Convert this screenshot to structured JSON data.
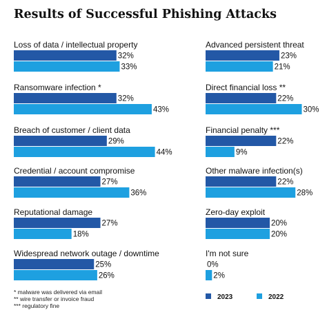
{
  "chart_data": {
    "type": "bar",
    "title": "Results of Successful Phishing Attacks",
    "orientation": "horizontal",
    "unit": "%",
    "xlim": [
      0,
      100
    ],
    "legend_placement": "bottom-right",
    "series": [
      {
        "name": "2023",
        "color": "#2358a6"
      },
      {
        "name": "2022",
        "color": "#1ea0e0"
      }
    ],
    "categories": [
      {
        "label": "Loss of data / intellectual property",
        "values": [
          32,
          33
        ]
      },
      {
        "label": "Ransomware infection *",
        "values": [
          32,
          43
        ]
      },
      {
        "label": "Breach of customer / client data",
        "values": [
          29,
          44
        ]
      },
      {
        "label": "Credential / account compromise",
        "values": [
          27,
          36
        ]
      },
      {
        "label": "Reputational damage",
        "values": [
          27,
          18
        ]
      },
      {
        "label": "Widespread network outage / downtime",
        "values": [
          25,
          26
        ]
      },
      {
        "label": "Advanced persistent threat",
        "values": [
          23,
          21
        ]
      },
      {
        "label": "Direct financial loss **",
        "values": [
          22,
          30
        ]
      },
      {
        "label": "Financial penalty ***",
        "values": [
          22,
          9
        ]
      },
      {
        "label": "Other malware infection(s)",
        "values": [
          22,
          28
        ]
      },
      {
        "label": "Zero-day exploit",
        "values": [
          20,
          20
        ]
      },
      {
        "label": "I'm not sure",
        "values": [
          0,
          2
        ]
      }
    ],
    "footnotes": [
      "* malware was delivered via email",
      "** wire transfer or invoice fraud",
      "*** regulatory fine"
    ]
  }
}
